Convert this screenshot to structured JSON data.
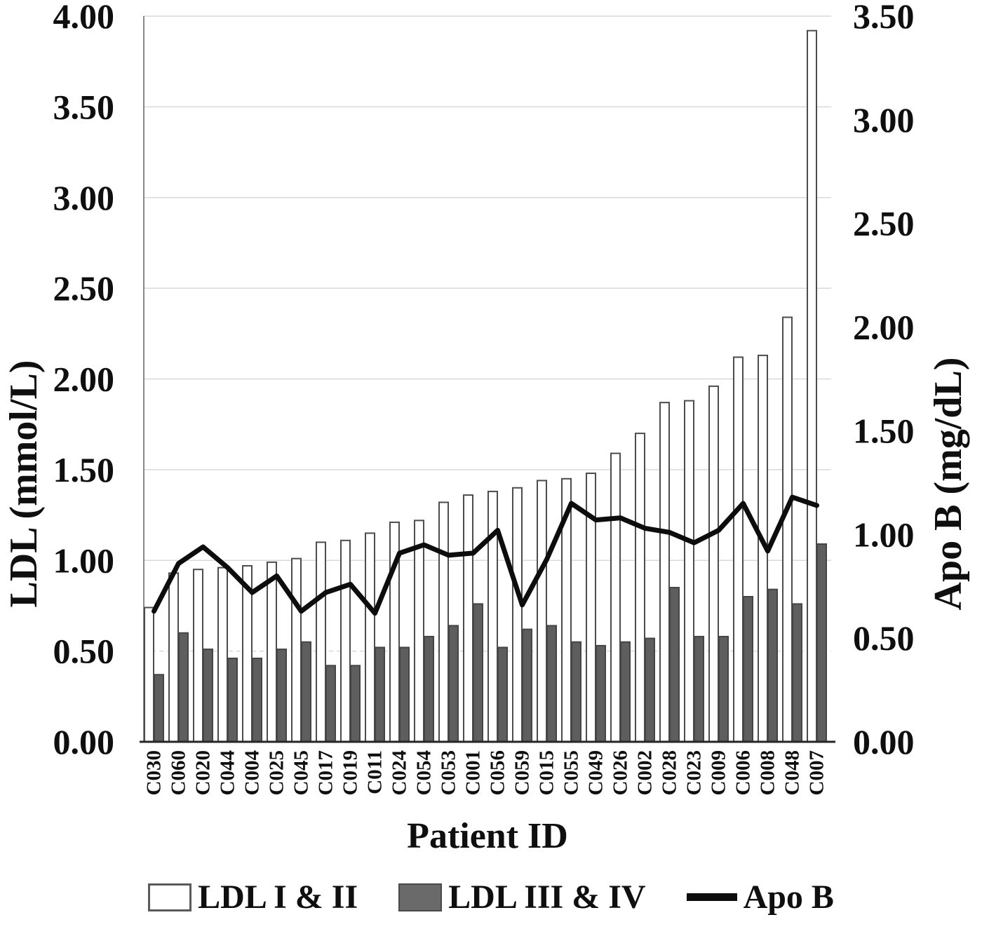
{
  "chart_data": {
    "type": "combo-bar-line",
    "x_title": "Patient ID",
    "categories": [
      "C030",
      "C060",
      "C020",
      "C044",
      "C004",
      "C025",
      "C045",
      "C017",
      "C019",
      "C011",
      "C024",
      "C054",
      "C053",
      "C001",
      "C056",
      "C059",
      "C015",
      "C055",
      "C049",
      "C026",
      "C002",
      "C028",
      "C023",
      "C009",
      "C006",
      "C008",
      "C048",
      "C007"
    ],
    "y_left": {
      "title": "LDL (mmol/L)",
      "min": 0,
      "max": 4,
      "step": 0.5,
      "ticks": [
        "0.00",
        "0.50",
        "1.00",
        "1.50",
        "2.00",
        "2.50",
        "3.00",
        "3.50",
        "4.00"
      ]
    },
    "y_right": {
      "title": "Apo B (mg/dL)",
      "min": 0,
      "max": 3.5,
      "step": 0.5,
      "ticks": [
        "0.00",
        "0.50",
        "1.00",
        "1.50",
        "2.00",
        "2.50",
        "3.00",
        "3.50"
      ]
    },
    "series": [
      {
        "name": "LDL I & II",
        "type": "bar",
        "axis": "left",
        "fill": "#ffffff",
        "stroke": "#4c4c4c",
        "values": [
          0.74,
          0.93,
          0.95,
          0.96,
          0.97,
          0.99,
          1.01,
          1.1,
          1.11,
          1.15,
          1.21,
          1.22,
          1.32,
          1.36,
          1.38,
          1.4,
          1.44,
          1.45,
          1.48,
          1.59,
          1.7,
          1.87,
          1.88,
          1.96,
          2.12,
          2.13,
          2.34,
          3.92
        ]
      },
      {
        "name": "LDL III & IV",
        "type": "bar",
        "axis": "left",
        "fill": "#5e5e5e",
        "stroke": "#454545",
        "values": [
          0.37,
          0.6,
          0.51,
          0.46,
          0.46,
          0.51,
          0.55,
          0.42,
          0.42,
          0.52,
          0.52,
          0.58,
          0.64,
          0.76,
          0.52,
          0.62,
          0.64,
          0.55,
          0.53,
          0.55,
          0.57,
          0.85,
          0.58,
          0.58,
          0.8,
          0.84,
          0.76,
          1.09
        ]
      },
      {
        "name": "Apo B",
        "type": "line",
        "axis": "right",
        "color": "#0d0d0d",
        "values": [
          0.63,
          0.86,
          0.94,
          0.84,
          0.72,
          0.8,
          0.63,
          0.72,
          0.76,
          0.62,
          0.91,
          0.95,
          0.9,
          0.91,
          1.02,
          0.66,
          0.88,
          1.15,
          1.07,
          1.08,
          1.03,
          1.01,
          0.96,
          1.02,
          1.15,
          0.92,
          1.18,
          1.14
        ]
      }
    ],
    "grid": {
      "color": "#d9d9d9",
      "dashed_value": 0.5,
      "axis_color": "#262626"
    },
    "legend_position": "bottom"
  }
}
